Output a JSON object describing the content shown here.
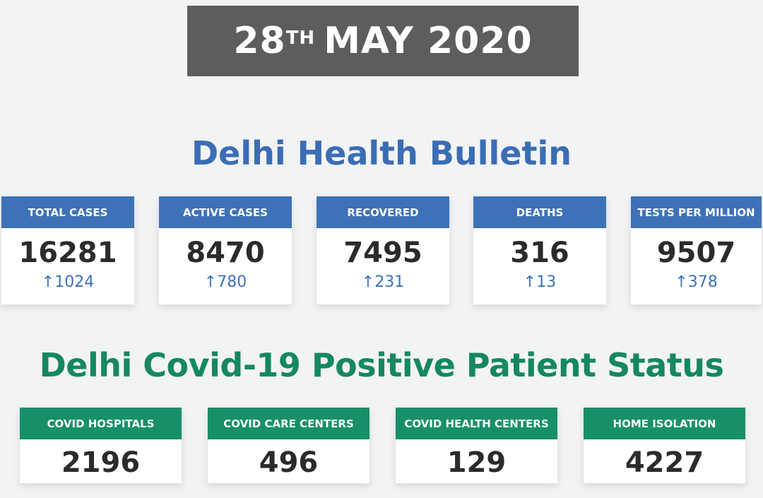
{
  "date": {
    "day": "28",
    "suffix": "TH",
    "rest": "MAY 2020"
  },
  "bulletin_title": "Delhi Health Bulletin",
  "bulletin_cards": [
    {
      "label": "TOTAL CASES",
      "value": "16281",
      "delta": "↑1024"
    },
    {
      "label": "ACTIVE CASES",
      "value": "8470",
      "delta": "↑780"
    },
    {
      "label": "RECOVERED",
      "value": "7495",
      "delta": "↑231"
    },
    {
      "label": "DEATHS",
      "value": "316",
      "delta": "↑13"
    },
    {
      "label": "TESTS PER MILLION",
      "value": "9507",
      "delta": "↑378"
    }
  ],
  "status_title": "Delhi Covid-19 Positive Patient Status",
  "status_cards": [
    {
      "label": "COVID HOSPITALS",
      "value": "2196"
    },
    {
      "label": "COVID CARE CENTERS",
      "value": "496"
    },
    {
      "label": "COVID HEALTH CENTERS",
      "value": "129"
    },
    {
      "label": "HOME ISOLATION",
      "value": "4227"
    }
  ],
  "colors": {
    "blue": "#3d72b8",
    "green": "#17906a",
    "banner": "#5d5d5d"
  }
}
